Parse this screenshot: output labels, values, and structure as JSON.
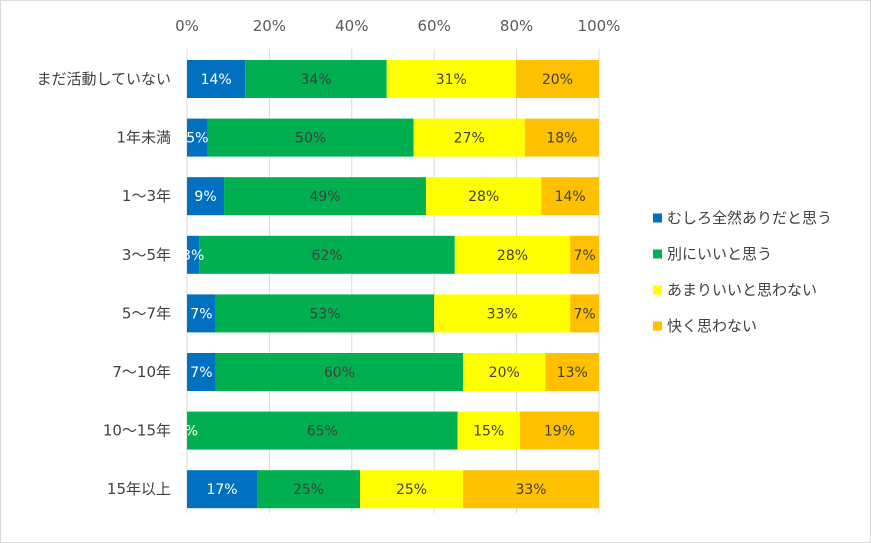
{
  "chart_data": {
    "type": "bar",
    "orientation": "horizontal",
    "stacked": "percent",
    "title": "",
    "xlabel": "",
    "ylabel": "",
    "xlim": [
      0,
      100
    ],
    "x_ticks": [
      "0%",
      "20%",
      "40%",
      "60%",
      "80%",
      "100%"
    ],
    "x_tick_values": [
      0,
      20,
      40,
      60,
      80,
      100
    ],
    "x_axis_position": "top",
    "grid": true,
    "legend_position": "right",
    "categories": [
      "まだ活動していない",
      "1年未満",
      "1～3年",
      "3～5年",
      "5～7年",
      "7～10年",
      "10～15年",
      "15年以上"
    ],
    "series": [
      {
        "name": "むしろ全然ありだと思う",
        "color": "#0070c0",
        "label_color": "#ffffff",
        "values": [
          14,
          5,
          9,
          3,
          7,
          7,
          0,
          17
        ],
        "labels": [
          "14%",
          "5%",
          "9%",
          "3%",
          "7%",
          "7%",
          "0%",
          "17%"
        ]
      },
      {
        "name": "別にいいと思う",
        "color": "#00b050",
        "label_color": "#404040",
        "values": [
          34,
          50,
          49,
          62,
          53,
          60,
          65,
          25
        ],
        "labels": [
          "34%",
          "50%",
          "49%",
          "62%",
          "53%",
          "60%",
          "65%",
          "25%"
        ]
      },
      {
        "name": "あまりいいと思わない",
        "color": "#ffff00",
        "label_color": "#404040",
        "values": [
          31,
          27,
          28,
          28,
          33,
          20,
          15,
          25
        ],
        "labels": [
          "31%",
          "27%",
          "28%",
          "28%",
          "33%",
          "20%",
          "15%",
          "25%"
        ]
      },
      {
        "name": "快く思わない",
        "color": "#ffc000",
        "label_color": "#404040",
        "values": [
          20,
          18,
          14,
          7,
          7,
          13,
          19,
          33
        ],
        "labels": [
          "20%",
          "18%",
          "14%",
          "7%",
          "7%",
          "13%",
          "19%",
          "33%"
        ]
      }
    ],
    "colors": {
      "grid": "#d9d9d9",
      "axis_text": "#595959",
      "category_text": "#404040"
    }
  }
}
